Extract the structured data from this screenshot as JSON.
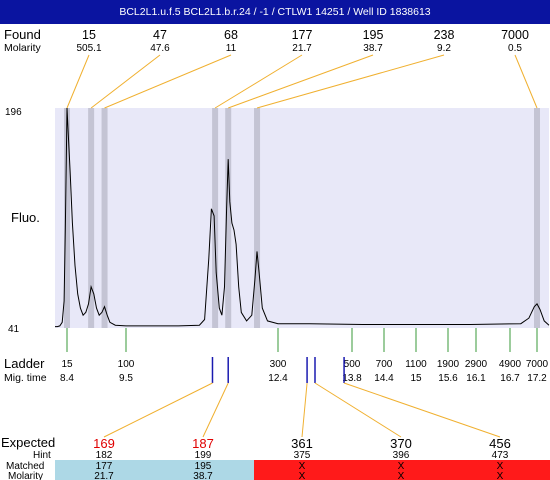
{
  "header": {
    "title": "BCL2L1.u.f.5  BCL2L1.b.r.24 / -1 / CTLW1 14251 / Well ID 1838613"
  },
  "labels": {
    "found": "Found",
    "molarity": "Molarity",
    "fluo": "Fluo.",
    "ladder": "Ladder",
    "mig_time": "Mig. time",
    "expected": "Expected",
    "hint": "Hint",
    "matched": "Matched",
    "molarity_bottom": "Molarity"
  },
  "colors": {
    "header_bg": "#0a14a0",
    "plot_bg": "#e8e8f8",
    "peak_band": "#c4c4d4",
    "found_connector": "#f0b030",
    "ladder_tick": "#3a9a3a",
    "expected_marker": "#1a1ab0",
    "matched_ok": "#add8e6",
    "matched_fail": "#ff1a1a",
    "expected_red": "#e00000"
  },
  "chart_data": {
    "type": "line",
    "title": "BCL2L1.u.f.5  BCL2L1.b.r.24 / -1 / CTLW1 14251 / Well ID 1838613",
    "ylabel": "Fluo.",
    "xlabel": "Mig. time",
    "ylim": [
      41,
      196
    ],
    "xlim": [
      7.9,
      17.4
    ],
    "y_ticks": [
      196,
      41
    ],
    "found": [
      {
        "size": "15",
        "molarity": "505.1",
        "time": 8.4
      },
      {
        "size": "47",
        "molarity": "47.6",
        "time": 8.85
      },
      {
        "size": "68",
        "molarity": "11",
        "time": 9.1
      },
      {
        "size": "177",
        "molarity": "21.7",
        "time": 11.2
      },
      {
        "size": "195",
        "molarity": "38.7",
        "time": 11.45
      },
      {
        "size": "238",
        "molarity": "9.2",
        "time": 12.0
      },
      {
        "size": "7000",
        "molarity": "0.5",
        "time": 17.2
      }
    ],
    "ladder": [
      {
        "size": "15",
        "time": 8.4,
        "time_label": "8.4"
      },
      {
        "size": "100",
        "time": 9.5,
        "time_label": "9.5"
      },
      {
        "size": "300",
        "time": 12.4,
        "time_label": "12.4"
      },
      {
        "size": "500",
        "time": 13.8,
        "time_label": "13.8"
      },
      {
        "size": "700",
        "time": 14.4,
        "time_label": "14.4"
      },
      {
        "size": "1100",
        "time": 15,
        "time_label": "15"
      },
      {
        "size": "1900",
        "time": 15.6,
        "time_label": "15.6"
      },
      {
        "size": "2900",
        "time": 16.1,
        "time_label": "16.1"
      },
      {
        "size": "4900",
        "time": 16.7,
        "time_label": "16.7"
      },
      {
        "size": "7000",
        "time": 17.2,
        "time_label": "17.2"
      }
    ],
    "expected": [
      {
        "expected": "169",
        "hint": "182",
        "matched": "177",
        "molarity": "21.7",
        "status": "matched",
        "time": 11.15
      },
      {
        "expected": "187",
        "hint": "199",
        "matched": "195",
        "molarity": "38.7",
        "status": "matched",
        "time": 11.45
      },
      {
        "expected": "361",
        "hint": "375",
        "matched": "X",
        "molarity": "X",
        "status": "unmatched",
        "time": 12.95
      },
      {
        "expected": "370",
        "hint": "396",
        "matched": "X",
        "molarity": "X",
        "status": "unmatched",
        "time": 13.1
      },
      {
        "expected": "456",
        "hint": "473",
        "matched": "X",
        "molarity": "X",
        "status": "unmatched",
        "time": 13.65
      }
    ],
    "trace": [
      [
        7.9,
        42
      ],
      [
        8.0,
        42
      ],
      [
        8.1,
        42.5
      ],
      [
        8.2,
        45
      ],
      [
        8.28,
        60
      ],
      [
        8.33,
        110
      ],
      [
        8.38,
        170
      ],
      [
        8.4,
        196
      ],
      [
        8.42,
        180
      ],
      [
        8.46,
        150
      ],
      [
        8.5,
        115
      ],
      [
        8.55,
        85
      ],
      [
        8.6,
        65
      ],
      [
        8.65,
        55
      ],
      [
        8.7,
        50
      ],
      [
        8.75,
        52
      ],
      [
        8.8,
        58
      ],
      [
        8.85,
        70
      ],
      [
        8.9,
        65
      ],
      [
        8.95,
        55
      ],
      [
        9.0,
        50
      ],
      [
        9.05,
        52
      ],
      [
        9.1,
        56
      ],
      [
        9.15,
        50
      ],
      [
        9.2,
        45
      ],
      [
        9.3,
        43
      ],
      [
        9.5,
        42.5
      ],
      [
        10.0,
        42.5
      ],
      [
        10.5,
        42.5
      ],
      [
        10.9,
        43
      ],
      [
        11.0,
        47
      ],
      [
        11.08,
        90
      ],
      [
        11.13,
        125
      ],
      [
        11.18,
        120
      ],
      [
        11.22,
        80
      ],
      [
        11.28,
        55
      ],
      [
        11.33,
        50
      ],
      [
        11.38,
        70
      ],
      [
        11.42,
        125
      ],
      [
        11.45,
        160
      ],
      [
        11.48,
        130
      ],
      [
        11.52,
        115
      ],
      [
        11.56,
        110
      ],
      [
        11.6,
        100
      ],
      [
        11.65,
        70
      ],
      [
        11.7,
        52
      ],
      [
        11.8,
        46
      ],
      [
        11.9,
        50
      ],
      [
        11.96,
        75
      ],
      [
        12.0,
        95
      ],
      [
        12.04,
        80
      ],
      [
        12.1,
        55
      ],
      [
        12.2,
        46
      ],
      [
        12.4,
        44
      ],
      [
        13.0,
        44
      ],
      [
        14.0,
        43.5
      ],
      [
        15.0,
        43.5
      ],
      [
        16.0,
        43.5
      ],
      [
        16.9,
        44
      ],
      [
        17.05,
        48
      ],
      [
        17.15,
        56
      ],
      [
        17.2,
        58
      ],
      [
        17.25,
        54
      ],
      [
        17.32,
        46
      ],
      [
        17.4,
        43
      ]
    ]
  }
}
